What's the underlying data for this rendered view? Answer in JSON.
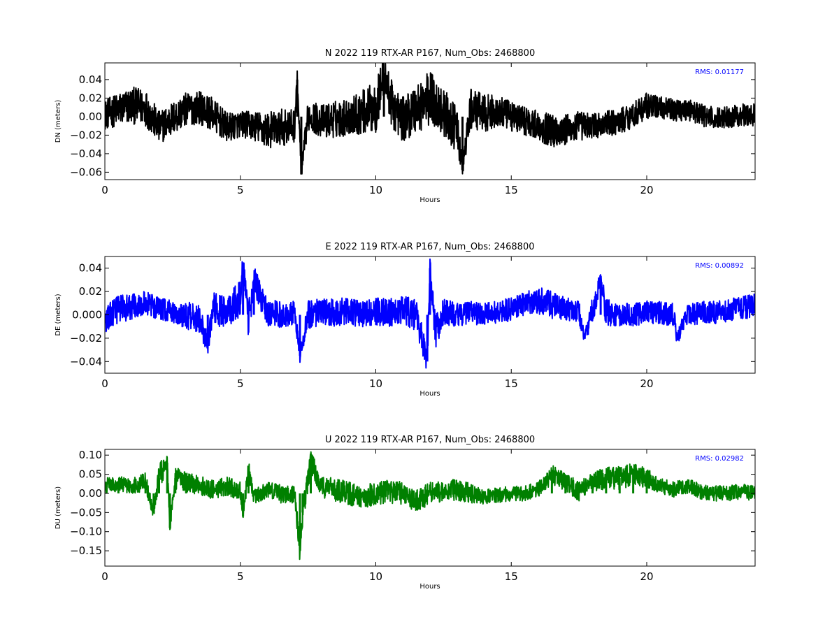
{
  "chart_data": [
    {
      "type": "line",
      "title": "N 2022 119 RTX-AR  P167, Num_Obs: 2468800",
      "xlabel": "Hours",
      "ylabel": "DN (meters)",
      "xlim": [
        0,
        24
      ],
      "ylim": [
        -0.068,
        0.058
      ],
      "xticks": [
        0,
        5,
        10,
        15,
        20
      ],
      "yticks": [
        -0.06,
        -0.04,
        -0.02,
        0.0,
        0.02,
        0.04
      ],
      "ytick_labels": [
        "−0.06",
        "−0.04",
        "−0.02",
        "0.00",
        "0.02",
        "0.04"
      ],
      "annotation": "RMS:  0.01177",
      "color": "#000000",
      "annotation_color": "#0000ff",
      "series": [
        {
          "x": [
            0,
            0.5,
            1,
            1.5,
            2,
            2.5,
            3,
            3.5,
            4,
            4.5,
            5,
            5.5,
            6,
            6.5,
            7,
            7.1,
            7.25,
            7.5,
            8,
            8.5,
            9,
            9.5,
            10,
            10.3,
            10.6,
            11,
            11.5,
            12,
            12.5,
            13,
            13.2,
            13.5,
            14,
            14.5,
            15,
            15.5,
            16,
            16.5,
            17,
            17.5,
            18,
            18.5,
            19,
            19.5,
            20,
            20.5,
            21,
            21.5,
            22,
            22.5,
            23,
            23.5,
            24
          ],
          "y": [
            0.002,
            0.008,
            0.012,
            0.01,
            -0.012,
            -0.002,
            0.008,
            0.01,
            0.002,
            -0.012,
            -0.008,
            -0.01,
            -0.015,
            -0.012,
            -0.01,
            0.04,
            -0.062,
            0.002,
            -0.005,
            -0.003,
            0.0,
            0.005,
            0.01,
            0.045,
            0.012,
            -0.003,
            0.01,
            0.02,
            0.005,
            -0.015,
            -0.055,
            0.008,
            0.004,
            0.005,
            0.0,
            -0.004,
            -0.01,
            -0.015,
            -0.015,
            -0.01,
            -0.01,
            -0.008,
            -0.005,
            0.002,
            0.012,
            0.01,
            0.007,
            0.008,
            0.002,
            -0.002,
            0.0,
            0.002,
            0.002
          ],
          "amplitude": [
            0.016,
            0.018,
            0.02,
            0.02,
            0.018,
            0.018,
            0.018,
            0.018,
            0.018,
            0.016,
            0.014,
            0.016,
            0.02,
            0.02,
            0.018,
            0.01,
            0.01,
            0.016,
            0.018,
            0.02,
            0.02,
            0.024,
            0.028,
            0.02,
            0.026,
            0.024,
            0.028,
            0.03,
            0.026,
            0.024,
            0.01,
            0.022,
            0.02,
            0.018,
            0.016,
            0.016,
            0.016,
            0.018,
            0.018,
            0.016,
            0.014,
            0.014,
            0.014,
            0.014,
            0.014,
            0.012,
            0.012,
            0.012,
            0.012,
            0.012,
            0.012,
            0.012,
            0.012
          ]
        }
      ]
    },
    {
      "type": "line",
      "title": "E 2022 119 RTX-AR  P167, Num_Obs: 2468800",
      "xlabel": "Hours",
      "ylabel": "DE (meters)",
      "xlim": [
        0,
        24
      ],
      "ylim": [
        -0.05,
        0.05
      ],
      "xticks": [
        0,
        5,
        10,
        15,
        20
      ],
      "yticks": [
        -0.04,
        -0.02,
        0.0,
        0.02,
        0.04
      ],
      "ytick_labels": [
        "−0.04",
        "−0.02",
        "0.000",
        "0.02",
        "0.04"
      ],
      "annotation": "RMS:  0.00892",
      "color": "#0000ff",
      "annotation_color": "#0000ff",
      "series": [
        {
          "x": [
            0,
            0.5,
            1,
            1.5,
            2,
            2.5,
            3,
            3.5,
            3.8,
            4,
            4.5,
            5,
            5.1,
            5.3,
            5.5,
            6,
            6.5,
            7,
            7.2,
            7.5,
            8,
            8.5,
            9,
            9.5,
            10,
            10.5,
            11,
            11.5,
            11.9,
            12,
            12.2,
            12.5,
            13,
            13.5,
            14,
            14.5,
            15,
            15.5,
            16,
            16.5,
            17,
            17.5,
            17.7,
            18,
            18.3,
            18.5,
            19,
            19.5,
            20,
            20.5,
            21,
            21.1,
            21.5,
            22,
            22.5,
            23,
            23.5,
            24
          ],
          "y": [
            -0.005,
            0.005,
            0.008,
            0.01,
            0.005,
            0.002,
            0.0,
            -0.005,
            -0.025,
            0.005,
            0.002,
            0.015,
            0.045,
            -0.005,
            0.03,
            0.002,
            0.0,
            0.002,
            -0.035,
            0.0,
            0.002,
            0.002,
            0.003,
            0.0,
            0.003,
            0.002,
            0.004,
            0.0,
            -0.04,
            0.04,
            -0.015,
            0.002,
            0.0,
            0.002,
            0.0,
            0.002,
            0.005,
            0.01,
            0.012,
            0.008,
            0.005,
            0.003,
            -0.02,
            0.005,
            0.03,
            0.002,
            0.0,
            0.0,
            0.002,
            0.002,
            0.0,
            -0.02,
            0.0,
            0.002,
            0.002,
            0.004,
            0.006,
            0.008
          ],
          "amplitude": [
            0.012,
            0.012,
            0.012,
            0.01,
            0.01,
            0.01,
            0.012,
            0.014,
            0.008,
            0.014,
            0.014,
            0.016,
            0.008,
            0.016,
            0.012,
            0.012,
            0.012,
            0.01,
            0.006,
            0.012,
            0.012,
            0.012,
            0.012,
            0.012,
            0.012,
            0.012,
            0.012,
            0.014,
            0.01,
            0.01,
            0.014,
            0.012,
            0.01,
            0.01,
            0.01,
            0.01,
            0.01,
            0.01,
            0.012,
            0.012,
            0.01,
            0.01,
            0.006,
            0.012,
            0.01,
            0.012,
            0.01,
            0.01,
            0.01,
            0.01,
            0.01,
            0.006,
            0.01,
            0.01,
            0.01,
            0.01,
            0.01,
            0.01
          ]
        }
      ]
    },
    {
      "type": "line",
      "title": "U 2022 119 RTX-AR  P167, Num_Obs: 2468800",
      "xlabel": "Hours",
      "ylabel": "DU (meters)",
      "xlim": [
        0,
        24
      ],
      "ylim": [
        -0.19,
        0.115
      ],
      "xticks": [
        0,
        5,
        10,
        15,
        20
      ],
      "yticks": [
        -0.15,
        -0.1,
        -0.05,
        0.0,
        0.05,
        0.1
      ],
      "ytick_labels": [
        "−0.15",
        "−0.10",
        "−0.05",
        "0.00",
        "0.05",
        "0.10"
      ],
      "annotation": "RMS:  0.02982",
      "color": "#008000",
      "annotation_color": "#0000ff",
      "series": [
        {
          "x": [
            0,
            0.5,
            1,
            1.5,
            1.8,
            2,
            2.3,
            2.4,
            2.6,
            3,
            3.5,
            4,
            4.5,
            5,
            5.1,
            5.3,
            5.5,
            6,
            6.5,
            7,
            7.2,
            7.3,
            7.6,
            8,
            8.5,
            9,
            9.5,
            10,
            10.5,
            11,
            11.5,
            12,
            12.5,
            13,
            13.5,
            14,
            14.5,
            15,
            15.5,
            16,
            16.5,
            17,
            17.5,
            18,
            18.5,
            19,
            19.5,
            20,
            20.5,
            21,
            21.5,
            22,
            22.5,
            23,
            23.5,
            24
          ],
          "y": [
            0.02,
            0.025,
            0.02,
            0.03,
            -0.05,
            0.04,
            0.08,
            -0.09,
            0.04,
            0.03,
            0.02,
            0.01,
            0.02,
            0.005,
            -0.06,
            0.06,
            -0.01,
            0.01,
            0.0,
            0.0,
            -0.15,
            -0.05,
            0.08,
            0.02,
            0.01,
            0.0,
            -0.01,
            0.0,
            0.005,
            0.0,
            -0.02,
            0.0,
            0.005,
            0.01,
            0.0,
            -0.01,
            -0.005,
            0.0,
            0.0,
            0.01,
            0.05,
            0.03,
            0.005,
            0.03,
            0.04,
            0.04,
            0.05,
            0.04,
            0.02,
            0.01,
            0.02,
            0.005,
            0.0,
            0.0,
            0.005,
            0.0
          ],
          "amplitude": [
            0.02,
            0.02,
            0.02,
            0.025,
            0.015,
            0.04,
            0.02,
            0.015,
            0.03,
            0.025,
            0.025,
            0.025,
            0.025,
            0.025,
            0.02,
            0.03,
            0.02,
            0.02,
            0.025,
            0.025,
            0.03,
            0.03,
            0.03,
            0.03,
            0.03,
            0.03,
            0.03,
            0.03,
            0.03,
            0.03,
            0.03,
            0.03,
            0.025,
            0.03,
            0.025,
            0.02,
            0.02,
            0.02,
            0.02,
            0.02,
            0.025,
            0.025,
            0.025,
            0.025,
            0.03,
            0.03,
            0.03,
            0.025,
            0.02,
            0.02,
            0.02,
            0.02,
            0.02,
            0.02,
            0.02,
            0.02
          ]
        }
      ]
    }
  ]
}
